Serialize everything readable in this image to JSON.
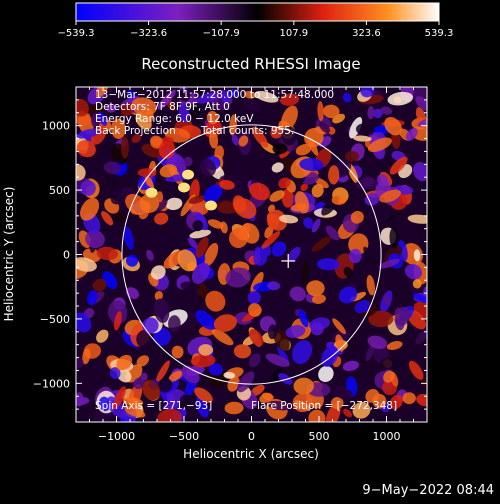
{
  "chart_data": {
    "type": "heatmap",
    "title": "Reconstructed RHESSI Image",
    "xlabel": "Heliocentric X (arcsec)",
    "ylabel": "Heliocentric Y (arcsec)",
    "xlim": [
      -1300,
      1300
    ],
    "ylim": [
      -1300,
      1300
    ],
    "x_ticks": [
      -1000,
      -500,
      0,
      500,
      1000
    ],
    "y_ticks": [
      -1000,
      -500,
      0,
      500,
      1000
    ],
    "x_tick_labels": [
      "−1000",
      "−500",
      "0",
      "500",
      "1000"
    ],
    "y_tick_labels": [
      "−1000",
      "−500",
      "0",
      "500",
      "1000"
    ],
    "colorbar": {
      "min": -539.3,
      "max": 539.3,
      "ticks": [
        -539.3,
        -323.6,
        -107.9,
        107.9,
        323.6,
        539.3
      ],
      "tick_labels": [
        "−539.3",
        "−323.6",
        "−107.9",
        "107.9",
        "323.6",
        "539.3"
      ]
    },
    "solar_limb": {
      "center": [
        0,
        0
      ],
      "radius": 960
    },
    "flare_position": [
      -272,
      348
    ],
    "spin_axis": [
      271,
      -93
    ],
    "annotations": {
      "line1": "13−Mar−2012 11:57:28.000 to 11:57:48.000",
      "line2": "Detectors: 7F 8F 9F, Att 0",
      "line3": "Energy Range: 6.0 − 12.0 keV",
      "line4a": "Back Projection",
      "line4b": "Total counts: 955.",
      "spin_axis_text": "Spin Axis = [271,−93]",
      "flare_position_text": "Flare Position = [−272,348]"
    }
  },
  "timestamp": "9−May−2022 08:44",
  "colors": {
    "min": "#0000ff",
    "low": "#7e1fc0",
    "mid": "#000000",
    "red": "#e02010",
    "orange": "#ff9020",
    "max": "#ffffff"
  }
}
